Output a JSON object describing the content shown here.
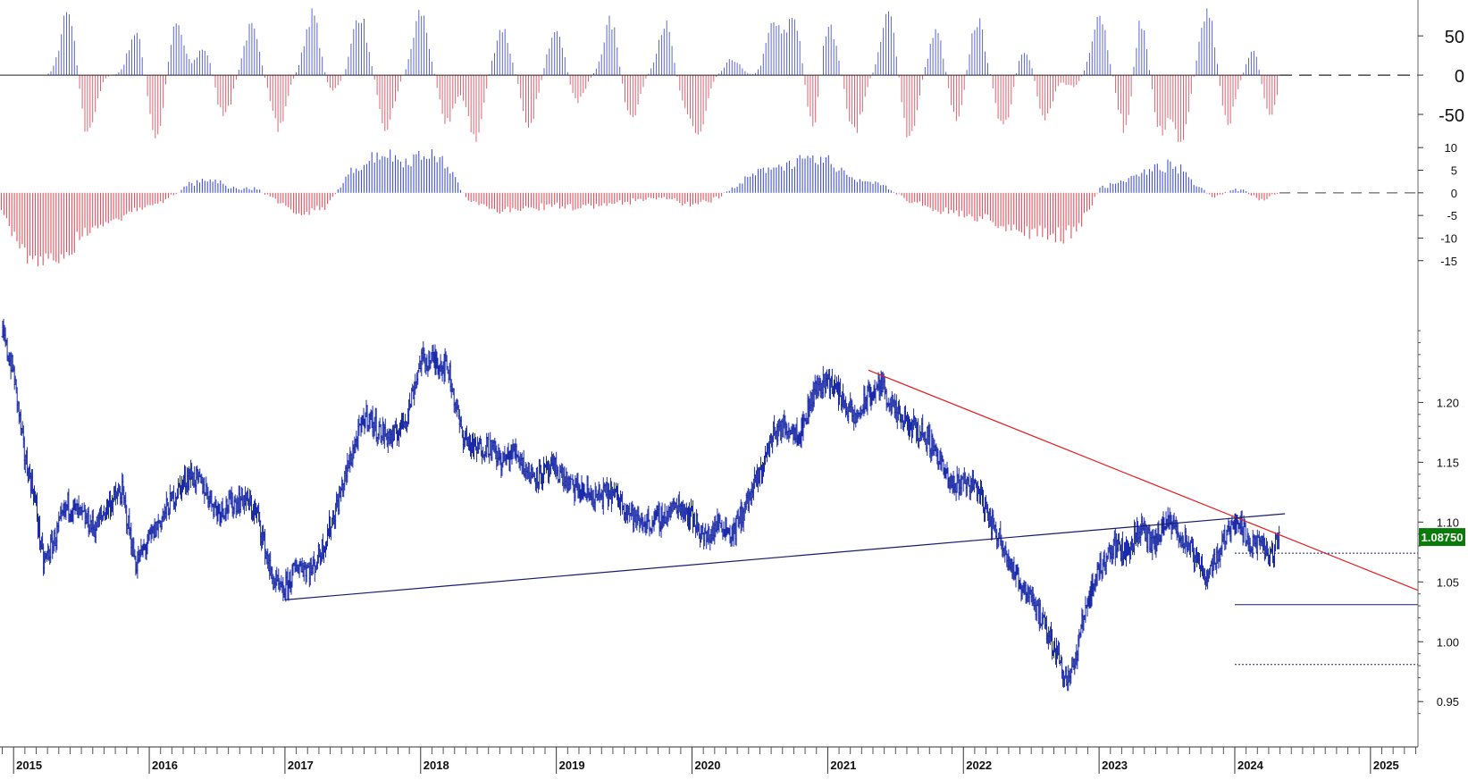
{
  "chart_data": [
    {
      "panel": "oscillator-upper",
      "type": "bar",
      "ylim": [
        -75,
        90
      ],
      "ticks": [
        "50",
        "0",
        "-50"
      ],
      "tick_values": [
        50,
        0,
        -50
      ],
      "reference_level": 0,
      "colors": {
        "positive": "#5a64d8",
        "negative": "#e06070",
        "reference": "#222222"
      },
      "x_range": [
        2014.9,
        2025.35
      ],
      "note_series": "approximate weekly cycle values",
      "cycle_peaks": [
        {
          "x": 2015.4,
          "v": 78
        },
        {
          "x": 2015.55,
          "v": -78
        },
        {
          "x": 2015.9,
          "v": 55
        },
        {
          "x": 2016.05,
          "v": -85
        },
        {
          "x": 2016.2,
          "v": 65
        },
        {
          "x": 2016.4,
          "v": 35
        },
        {
          "x": 2016.55,
          "v": -55
        },
        {
          "x": 2016.75,
          "v": 60
        },
        {
          "x": 2016.95,
          "v": -70
        },
        {
          "x": 2017.2,
          "v": 78
        },
        {
          "x": 2017.35,
          "v": -20
        },
        {
          "x": 2017.55,
          "v": 78
        },
        {
          "x": 2017.75,
          "v": -65
        },
        {
          "x": 2018.0,
          "v": 80
        },
        {
          "x": 2018.2,
          "v": -60
        },
        {
          "x": 2018.4,
          "v": -85
        },
        {
          "x": 2018.6,
          "v": 60
        },
        {
          "x": 2018.8,
          "v": -60
        },
        {
          "x": 2019.0,
          "v": 65
        },
        {
          "x": 2019.15,
          "v": -35
        },
        {
          "x": 2019.4,
          "v": 68
        },
        {
          "x": 2019.55,
          "v": -60
        },
        {
          "x": 2019.8,
          "v": 65
        },
        {
          "x": 2019.95,
          "v": -30
        },
        {
          "x": 2020.05,
          "v": -70
        },
        {
          "x": 2020.3,
          "v": 20
        },
        {
          "x": 2020.6,
          "v": 65
        },
        {
          "x": 2020.75,
          "v": 75
        },
        {
          "x": 2020.9,
          "v": -75
        },
        {
          "x": 2021.0,
          "v": 80
        },
        {
          "x": 2021.2,
          "v": -75
        },
        {
          "x": 2021.45,
          "v": 78
        },
        {
          "x": 2021.6,
          "v": -85
        },
        {
          "x": 2021.8,
          "v": 55
        },
        {
          "x": 2021.95,
          "v": -55
        },
        {
          "x": 2022.1,
          "v": 70
        },
        {
          "x": 2022.3,
          "v": -70
        },
        {
          "x": 2022.45,
          "v": 35
        },
        {
          "x": 2022.6,
          "v": -55
        },
        {
          "x": 2022.8,
          "v": -15
        },
        {
          "x": 2023.0,
          "v": 80
        },
        {
          "x": 2023.2,
          "v": -80
        },
        {
          "x": 2023.3,
          "v": 78
        },
        {
          "x": 2023.45,
          "v": -70
        },
        {
          "x": 2023.6,
          "v": -85
        },
        {
          "x": 2023.8,
          "v": 82
        },
        {
          "x": 2023.95,
          "v": -60
        },
        {
          "x": 2024.15,
          "v": 35
        },
        {
          "x": 2024.25,
          "v": -55
        }
      ]
    },
    {
      "panel": "oscillator-lower",
      "type": "bar",
      "ylim": [
        -19,
        13
      ],
      "ticks": [
        "10",
        "5",
        "0",
        "-5",
        "-10",
        "-15"
      ],
      "tick_values": [
        10,
        5,
        0,
        -5,
        -10,
        -15
      ],
      "reference_level": 0,
      "colors": {
        "positive": "#4050d8",
        "negative": "#e8505e",
        "reference": "#444444"
      },
      "x_range": [
        2014.9,
        2025.35
      ],
      "envelope": [
        {
          "x": 2014.9,
          "v": -3
        },
        {
          "x": 2015.05,
          "v": -12
        },
        {
          "x": 2015.2,
          "v": -17
        },
        {
          "x": 2015.35,
          "v": -14
        },
        {
          "x": 2015.5,
          "v": -9
        },
        {
          "x": 2015.7,
          "v": -6
        },
        {
          "x": 2015.9,
          "v": -4
        },
        {
          "x": 2016.1,
          "v": -2
        },
        {
          "x": 2016.3,
          "v": 2
        },
        {
          "x": 2016.45,
          "v": 3
        },
        {
          "x": 2016.6,
          "v": 1
        },
        {
          "x": 2016.8,
          "v": 1
        },
        {
          "x": 2016.95,
          "v": -2
        },
        {
          "x": 2017.1,
          "v": -5
        },
        {
          "x": 2017.3,
          "v": -3
        },
        {
          "x": 2017.5,
          "v": 5
        },
        {
          "x": 2017.7,
          "v": 9
        },
        {
          "x": 2017.9,
          "v": 7
        },
        {
          "x": 2018.05,
          "v": 9
        },
        {
          "x": 2018.2,
          "v": 6
        },
        {
          "x": 2018.35,
          "v": -2
        },
        {
          "x": 2018.6,
          "v": -4
        },
        {
          "x": 2018.9,
          "v": -3
        },
        {
          "x": 2019.2,
          "v": -3
        },
        {
          "x": 2019.5,
          "v": -2
        },
        {
          "x": 2019.8,
          "v": -1
        },
        {
          "x": 2020.0,
          "v": -3
        },
        {
          "x": 2020.2,
          "v": -1
        },
        {
          "x": 2020.4,
          "v": 3
        },
        {
          "x": 2020.6,
          "v": 6
        },
        {
          "x": 2020.85,
          "v": 7
        },
        {
          "x": 2021.0,
          "v": 7
        },
        {
          "x": 2021.2,
          "v": 3
        },
        {
          "x": 2021.4,
          "v": 2
        },
        {
          "x": 2021.6,
          "v": -2
        },
        {
          "x": 2021.85,
          "v": -4
        },
        {
          "x": 2022.05,
          "v": -5
        },
        {
          "x": 2022.3,
          "v": -7
        },
        {
          "x": 2022.5,
          "v": -9
        },
        {
          "x": 2022.7,
          "v": -10
        },
        {
          "x": 2022.85,
          "v": -8
        },
        {
          "x": 2023.0,
          "v": 1
        },
        {
          "x": 2023.2,
          "v": 3
        },
        {
          "x": 2023.4,
          "v": 5
        },
        {
          "x": 2023.5,
          "v": 6
        },
        {
          "x": 2023.6,
          "v": 5
        },
        {
          "x": 2023.75,
          "v": 1
        },
        {
          "x": 2023.85,
          "v": -1
        },
        {
          "x": 2024.0,
          "v": 1
        },
        {
          "x": 2024.1,
          "v": 0
        },
        {
          "x": 2024.2,
          "v": -2
        },
        {
          "x": 2024.3,
          "v": 0
        }
      ]
    },
    {
      "panel": "price",
      "type": "line",
      "ylim": [
        0.93,
        1.275
      ],
      "ticks": [
        "1.20",
        "1.15",
        "1.10",
        "1.05",
        "1.00",
        "0.95"
      ],
      "tick_values": [
        1.2,
        1.15,
        1.1,
        1.05,
        1.0,
        0.95
      ],
      "x_range": [
        2014.9,
        2025.35
      ],
      "x_tick_labels": [
        "2015",
        "2016",
        "2017",
        "2018",
        "2019",
        "2020",
        "2021",
        "2022",
        "2023",
        "2024",
        "2025"
      ],
      "x_tick_values": [
        2015,
        2016,
        2017,
        2018,
        2019,
        2020,
        2021,
        2022,
        2023,
        2024,
        2025
      ],
      "last_price_label": "1.08750",
      "last_price_value": 1.0875,
      "colors": {
        "bars": "#1a2aa8",
        "downtrend": "#e02020",
        "uptrend": "#1a1a70",
        "levels": "#1a1a70",
        "badge": "#0a7a0a",
        "badge_text": "#ffffff"
      },
      "price_series": [
        {
          "x": 2014.92,
          "y": 1.255
        },
        {
          "x": 2015.0,
          "y": 1.225
        },
        {
          "x": 2015.08,
          "y": 1.155
        },
        {
          "x": 2015.15,
          "y": 1.125
        },
        {
          "x": 2015.22,
          "y": 1.065
        },
        {
          "x": 2015.3,
          "y": 1.085
        },
        {
          "x": 2015.4,
          "y": 1.115
        },
        {
          "x": 2015.5,
          "y": 1.105
        },
        {
          "x": 2015.6,
          "y": 1.095
        },
        {
          "x": 2015.7,
          "y": 1.115
        },
        {
          "x": 2015.8,
          "y": 1.125
        },
        {
          "x": 2015.9,
          "y": 1.065
        },
        {
          "x": 2016.0,
          "y": 1.085
        },
        {
          "x": 2016.1,
          "y": 1.105
        },
        {
          "x": 2016.2,
          "y": 1.125
        },
        {
          "x": 2016.3,
          "y": 1.14
        },
        {
          "x": 2016.4,
          "y": 1.13
        },
        {
          "x": 2016.5,
          "y": 1.11
        },
        {
          "x": 2016.6,
          "y": 1.115
        },
        {
          "x": 2016.7,
          "y": 1.12
        },
        {
          "x": 2016.8,
          "y": 1.105
        },
        {
          "x": 2016.9,
          "y": 1.055
        },
        {
          "x": 2016.98,
          "y": 1.04
        },
        {
          "x": 2017.1,
          "y": 1.065
        },
        {
          "x": 2017.2,
          "y": 1.06
        },
        {
          "x": 2017.3,
          "y": 1.085
        },
        {
          "x": 2017.4,
          "y": 1.12
        },
        {
          "x": 2017.5,
          "y": 1.16
        },
        {
          "x": 2017.6,
          "y": 1.19
        },
        {
          "x": 2017.7,
          "y": 1.175
        },
        {
          "x": 2017.8,
          "y": 1.17
        },
        {
          "x": 2017.9,
          "y": 1.19
        },
        {
          "x": 2018.0,
          "y": 1.235
        },
        {
          "x": 2018.1,
          "y": 1.235
        },
        {
          "x": 2018.2,
          "y": 1.23
        },
        {
          "x": 2018.3,
          "y": 1.175
        },
        {
          "x": 2018.4,
          "y": 1.16
        },
        {
          "x": 2018.5,
          "y": 1.165
        },
        {
          "x": 2018.6,
          "y": 1.15
        },
        {
          "x": 2018.7,
          "y": 1.16
        },
        {
          "x": 2018.8,
          "y": 1.14
        },
        {
          "x": 2018.9,
          "y": 1.14
        },
        {
          "x": 2019.0,
          "y": 1.145
        },
        {
          "x": 2019.1,
          "y": 1.13
        },
        {
          "x": 2019.2,
          "y": 1.125
        },
        {
          "x": 2019.3,
          "y": 1.12
        },
        {
          "x": 2019.4,
          "y": 1.125
        },
        {
          "x": 2019.5,
          "y": 1.115
        },
        {
          "x": 2019.6,
          "y": 1.1
        },
        {
          "x": 2019.7,
          "y": 1.1
        },
        {
          "x": 2019.8,
          "y": 1.105
        },
        {
          "x": 2019.9,
          "y": 1.115
        },
        {
          "x": 2020.0,
          "y": 1.105
        },
        {
          "x": 2020.1,
          "y": 1.085
        },
        {
          "x": 2020.2,
          "y": 1.1
        },
        {
          "x": 2020.3,
          "y": 1.09
        },
        {
          "x": 2020.4,
          "y": 1.115
        },
        {
          "x": 2020.5,
          "y": 1.14
        },
        {
          "x": 2020.6,
          "y": 1.175
        },
        {
          "x": 2020.7,
          "y": 1.18
        },
        {
          "x": 2020.8,
          "y": 1.175
        },
        {
          "x": 2020.9,
          "y": 1.21
        },
        {
          "x": 2021.0,
          "y": 1.22
        },
        {
          "x": 2021.1,
          "y": 1.205
        },
        {
          "x": 2021.2,
          "y": 1.185
        },
        {
          "x": 2021.3,
          "y": 1.205
        },
        {
          "x": 2021.4,
          "y": 1.215
        },
        {
          "x": 2021.5,
          "y": 1.19
        },
        {
          "x": 2021.6,
          "y": 1.18
        },
        {
          "x": 2021.7,
          "y": 1.175
        },
        {
          "x": 2021.8,
          "y": 1.16
        },
        {
          "x": 2021.9,
          "y": 1.13
        },
        {
          "x": 2022.0,
          "y": 1.135
        },
        {
          "x": 2022.1,
          "y": 1.13
        },
        {
          "x": 2022.2,
          "y": 1.1
        },
        {
          "x": 2022.3,
          "y": 1.08
        },
        {
          "x": 2022.4,
          "y": 1.05
        },
        {
          "x": 2022.5,
          "y": 1.04
        },
        {
          "x": 2022.6,
          "y": 1.01
        },
        {
          "x": 2022.7,
          "y": 0.99
        },
        {
          "x": 2022.75,
          "y": 0.97
        },
        {
          "x": 2022.82,
          "y": 0.98
        },
        {
          "x": 2022.9,
          "y": 1.03
        },
        {
          "x": 2023.0,
          "y": 1.06
        },
        {
          "x": 2023.1,
          "y": 1.08
        },
        {
          "x": 2023.2,
          "y": 1.075
        },
        {
          "x": 2023.3,
          "y": 1.095
        },
        {
          "x": 2023.4,
          "y": 1.08
        },
        {
          "x": 2023.5,
          "y": 1.1
        },
        {
          "x": 2023.6,
          "y": 1.09
        },
        {
          "x": 2023.7,
          "y": 1.07
        },
        {
          "x": 2023.8,
          "y": 1.055
        },
        {
          "x": 2023.9,
          "y": 1.08
        },
        {
          "x": 2024.0,
          "y": 1.105
        },
        {
          "x": 2024.1,
          "y": 1.085
        },
        {
          "x": 2024.2,
          "y": 1.08
        },
        {
          "x": 2024.27,
          "y": 1.07
        },
        {
          "x": 2024.33,
          "y": 1.0875
        }
      ],
      "trendlines": [
        {
          "name": "downtrend",
          "from": {
            "x": 2021.3,
            "y": 1.227
          },
          "to": {
            "x": 2025.35,
            "y": 1.043
          }
        },
        {
          "name": "uptrend",
          "from": {
            "x": 2017.0,
            "y": 1.035
          },
          "to": {
            "x": 2024.37,
            "y": 1.107
          }
        }
      ],
      "levels": [
        {
          "name": "dotted-upper",
          "y": 1.074,
          "x_from": 2024.0,
          "x_to": 2025.35,
          "style": "dotted"
        },
        {
          "name": "solid-mid",
          "y": 1.031,
          "x_from": 2024.0,
          "x_to": 2025.35,
          "style": "solid"
        },
        {
          "name": "dotted-lower",
          "y": 0.981,
          "x_from": 2024.0,
          "x_to": 2025.35,
          "style": "dotted"
        }
      ]
    }
  ]
}
